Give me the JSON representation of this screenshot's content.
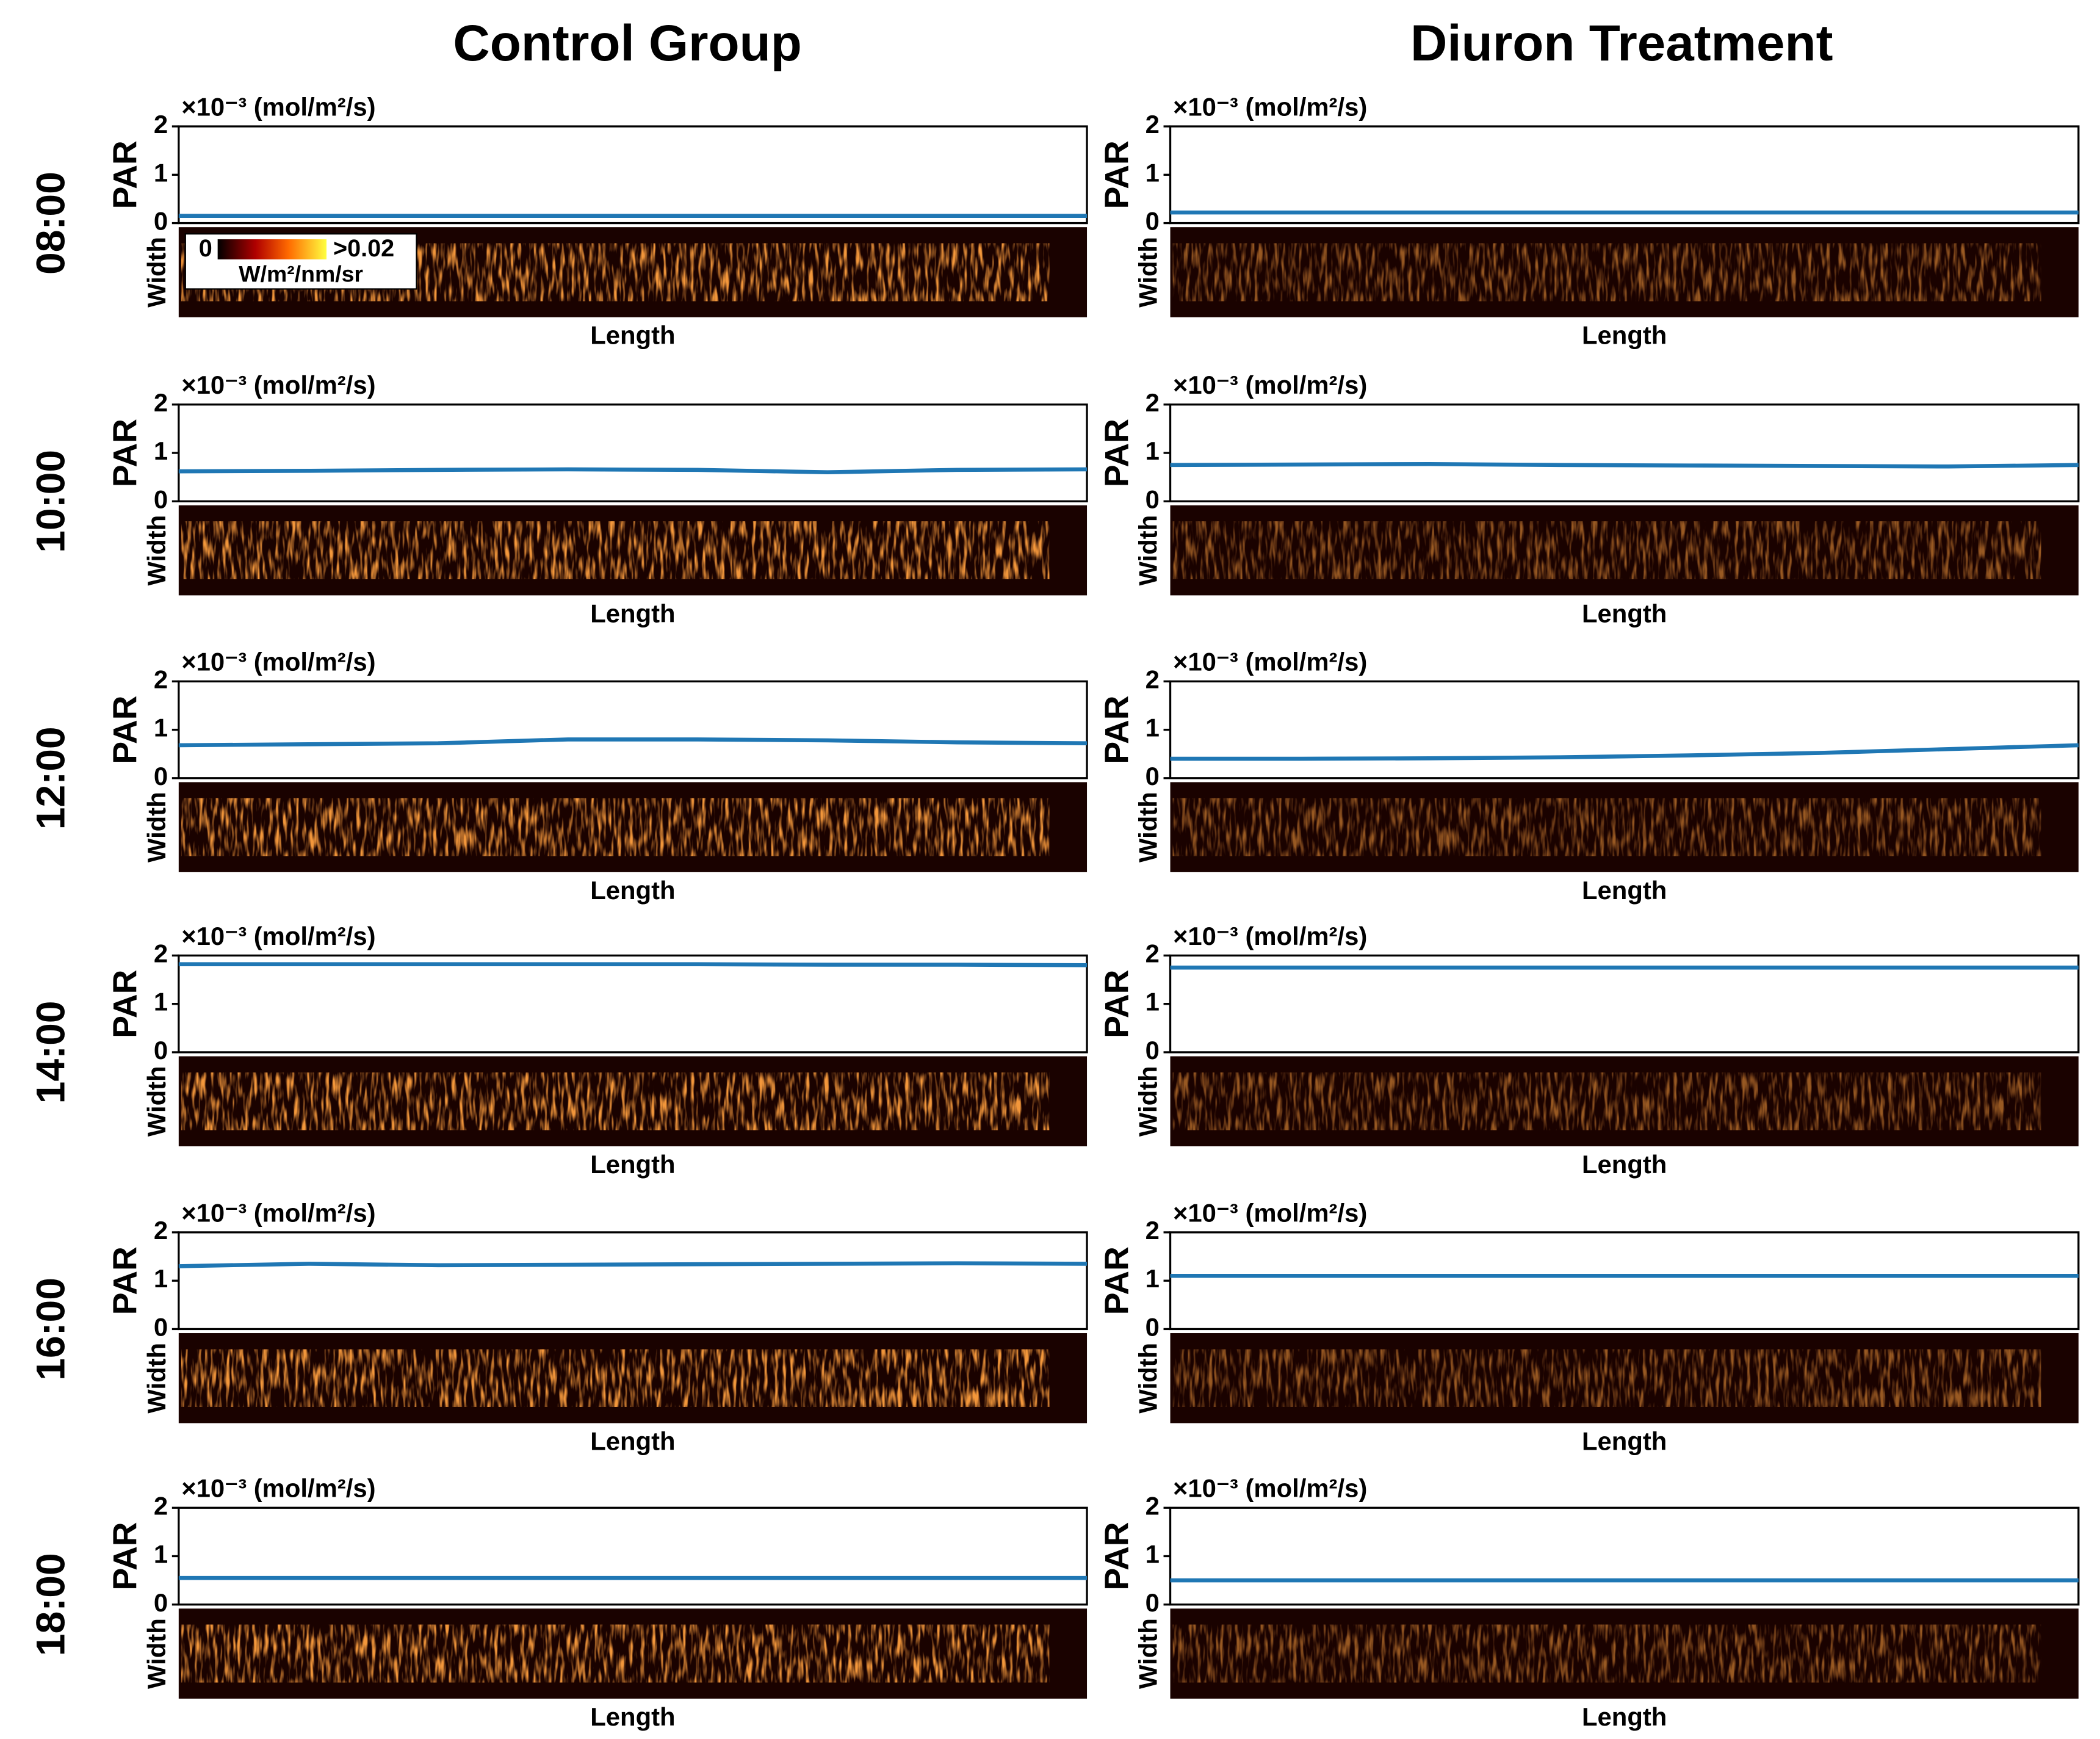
{
  "columns": [
    "Control Group",
    "Diuron Treatment"
  ],
  "rows": [
    "08:00",
    "10:00",
    "12:00",
    "14:00",
    "16:00",
    "18:00"
  ],
  "colorbar": {
    "ticks": [
      0,
      {
        "value": 0.02,
        "label": ">0.02"
      }
    ],
    "label": "W/m²/nm/sr"
  },
  "chart_data": [
    {
      "type": "line",
      "unit_label": "×10⁻³ (mol/m²/s)",
      "ylabel": "PAR",
      "xlabel": "Length",
      "image_label": "Width",
      "ylim": [
        0,
        2
      ],
      "yticks": [
        0,
        1,
        2
      ],
      "series": [
        {
          "color": "#1f77b4",
          "values": [
            0.15,
            0.15,
            0.15,
            0.15,
            0.15,
            0.15,
            0.15,
            0.15
          ]
        }
      ]
    },
    {
      "type": "line",
      "unit_label": "×10⁻³ (mol/m²/s)",
      "ylabel": "PAR",
      "xlabel": "Length",
      "image_label": "Width",
      "ylim": [
        0,
        2
      ],
      "yticks": [
        0,
        1,
        2
      ],
      "series": [
        {
          "color": "#1f77b4",
          "values": [
            0.22,
            0.22,
            0.22,
            0.22,
            0.22,
            0.22,
            0.22,
            0.22
          ]
        }
      ]
    },
    {
      "type": "line",
      "unit_label": "×10⁻³ (mol/m²/s)",
      "ylabel": "PAR",
      "xlabel": "Length",
      "image_label": "Width",
      "ylim": [
        0,
        2
      ],
      "yticks": [
        0,
        1,
        2
      ],
      "series": [
        {
          "color": "#1f77b4",
          "values": [
            0.62,
            0.63,
            0.65,
            0.66,
            0.65,
            0.6,
            0.65,
            0.66
          ]
        }
      ]
    },
    {
      "type": "line",
      "unit_label": "×10⁻³ (mol/m²/s)",
      "ylabel": "PAR",
      "xlabel": "Length",
      "image_label": "Width",
      "ylim": [
        0,
        2
      ],
      "yticks": [
        0,
        1,
        2
      ],
      "series": [
        {
          "color": "#1f77b4",
          "values": [
            0.75,
            0.76,
            0.77,
            0.75,
            0.74,
            0.73,
            0.72,
            0.75
          ]
        }
      ]
    },
    {
      "type": "line",
      "unit_label": "×10⁻³ (mol/m²/s)",
      "ylabel": "PAR",
      "xlabel": "Length",
      "image_label": "Width",
      "ylim": [
        0,
        2
      ],
      "yticks": [
        0,
        1,
        2
      ],
      "series": [
        {
          "color": "#1f77b4",
          "values": [
            0.68,
            0.7,
            0.72,
            0.8,
            0.8,
            0.78,
            0.74,
            0.72
          ]
        }
      ]
    },
    {
      "type": "line",
      "unit_label": "×10⁻³ (mol/m²/s)",
      "ylabel": "PAR",
      "xlabel": "Length",
      "image_label": "Width",
      "ylim": [
        0,
        2
      ],
      "yticks": [
        0,
        1,
        2
      ],
      "series": [
        {
          "color": "#1f77b4",
          "values": [
            0.4,
            0.4,
            0.41,
            0.43,
            0.47,
            0.52,
            0.6,
            0.68
          ]
        }
      ]
    },
    {
      "type": "line",
      "unit_label": "×10⁻³ (mol/m²/s)",
      "ylabel": "PAR",
      "xlabel": "Length",
      "image_label": "Width",
      "ylim": [
        0,
        2
      ],
      "yticks": [
        0,
        1,
        2
      ],
      "series": [
        {
          "color": "#1f77b4",
          "values": [
            1.82,
            1.82,
            1.82,
            1.82,
            1.82,
            1.81,
            1.81,
            1.8
          ]
        }
      ]
    },
    {
      "type": "line",
      "unit_label": "×10⁻³ (mol/m²/s)",
      "ylabel": "PAR",
      "xlabel": "Length",
      "image_label": "Width",
      "ylim": [
        0,
        2
      ],
      "yticks": [
        0,
        1,
        2
      ],
      "series": [
        {
          "color": "#1f77b4",
          "values": [
            1.75,
            1.75,
            1.75,
            1.75,
            1.75,
            1.75,
            1.75,
            1.75
          ]
        }
      ]
    },
    {
      "type": "line",
      "unit_label": "×10⁻³ (mol/m²/s)",
      "ylabel": "PAR",
      "xlabel": "Length",
      "image_label": "Width",
      "ylim": [
        0,
        2
      ],
      "yticks": [
        0,
        1,
        2
      ],
      "series": [
        {
          "color": "#1f77b4",
          "values": [
            1.3,
            1.35,
            1.32,
            1.33,
            1.34,
            1.35,
            1.36,
            1.35
          ]
        }
      ]
    },
    {
      "type": "line",
      "unit_label": "×10⁻³ (mol/m²/s)",
      "ylabel": "PAR",
      "xlabel": "Length",
      "image_label": "Width",
      "ylim": [
        0,
        2
      ],
      "yticks": [
        0,
        1,
        2
      ],
      "series": [
        {
          "color": "#1f77b4",
          "values": [
            1.1,
            1.1,
            1.1,
            1.1,
            1.1,
            1.1,
            1.1,
            1.1
          ]
        }
      ]
    },
    {
      "type": "line",
      "unit_label": "×10⁻³ (mol/m²/s)",
      "ylabel": "PAR",
      "xlabel": "Length",
      "image_label": "Width",
      "ylim": [
        0,
        2
      ],
      "yticks": [
        0,
        1,
        2
      ],
      "series": [
        {
          "color": "#1f77b4",
          "values": [
            0.55,
            0.55,
            0.55,
            0.55,
            0.55,
            0.55,
            0.55,
            0.55
          ]
        }
      ]
    },
    {
      "type": "line",
      "unit_label": "×10⁻³ (mol/m²/s)",
      "ylabel": "PAR",
      "xlabel": "Length",
      "image_label": "Width",
      "ylim": [
        0,
        2
      ],
      "yticks": [
        0,
        1,
        2
      ],
      "series": [
        {
          "color": "#1f77b4",
          "values": [
            0.5,
            0.5,
            0.5,
            0.5,
            0.5,
            0.5,
            0.5,
            0.5
          ]
        }
      ]
    }
  ]
}
